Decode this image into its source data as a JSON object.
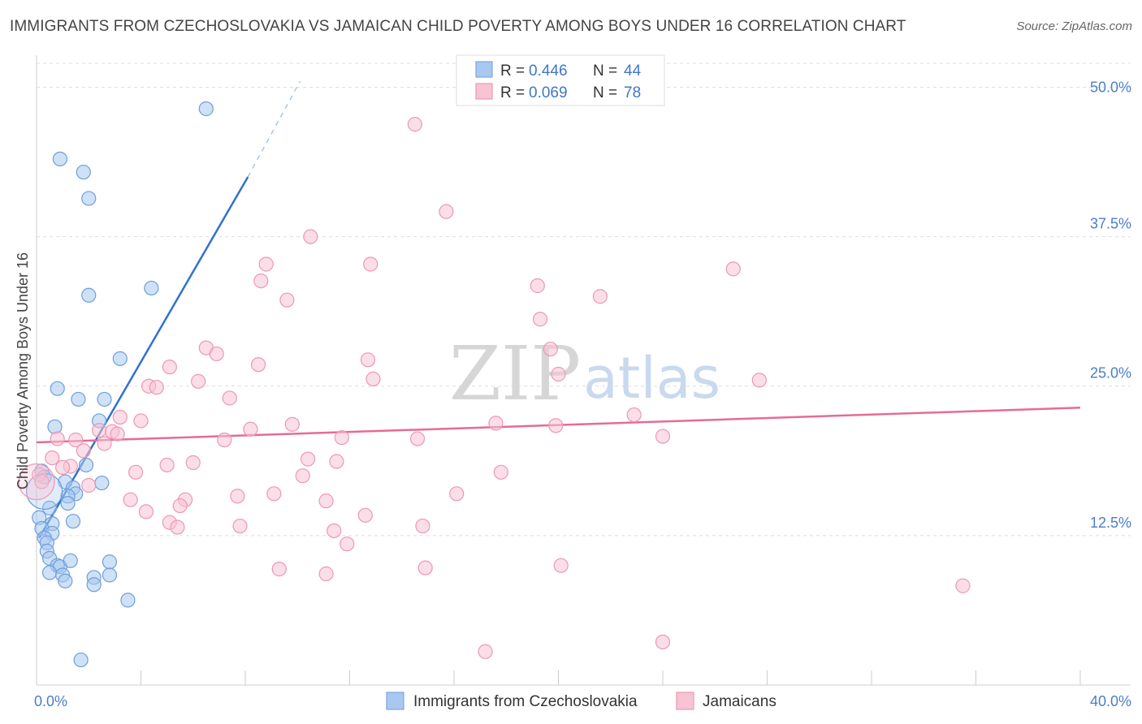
{
  "title": "IMMIGRANTS FROM CZECHOSLOVAKIA VS JAMAICAN CHILD POVERTY AMONG BOYS UNDER 16 CORRELATION CHART",
  "source": "Source: ZipAtlas.com",
  "watermark": {
    "zip": "ZIP",
    "atlas": "atlas"
  },
  "legend": {
    "r_label": "R =",
    "n_label": "N =",
    "entries": [
      {
        "r": "0.446",
        "n": "44",
        "color": "#a8c8f0",
        "edge": "#7aa8e0"
      },
      {
        "r": "0.069",
        "n": "78",
        "color": "#f8c3d3",
        "edge": "#ec98b3"
      }
    ]
  },
  "chart_data": {
    "type": "scatter",
    "title": "IMMIGRANTS FROM CZECHOSLOVAKIA VS JAMAICAN CHILD POVERTY AMONG BOYS UNDER 16 CORRELATION CHART",
    "xlabel": "",
    "ylabel": "Child Poverty Among Boys Under 16",
    "xlim": [
      0,
      40
    ],
    "ylim": [
      0,
      52
    ],
    "x_tick_labels": [
      {
        "value": 0,
        "label": "0.0%"
      },
      {
        "value": 40,
        "label": "40.0%"
      }
    ],
    "y_tick_labels": [
      {
        "value": 12.5,
        "label": "12.5%"
      },
      {
        "value": 25,
        "label": "25.0%"
      },
      {
        "value": 37.5,
        "label": "37.5%"
      },
      {
        "value": 50,
        "label": "50.0%"
      }
    ],
    "series": [
      {
        "name": "Immigrants from Czechoslovakia",
        "color": "#a8c8f0",
        "edge": "#6f9fd9",
        "trend_color": "#2f72cf",
        "trend": {
          "x0": 0.1,
          "y0": 12.3,
          "x1": 8.1,
          "y1": 42.5,
          "dash_to_x": 10.1,
          "dash_to_y": 50.5
        },
        "points": [
          [
            6.5,
            48.2
          ],
          [
            0.9,
            44.0
          ],
          [
            1.8,
            42.9
          ],
          [
            2.0,
            40.7
          ],
          [
            4.4,
            33.2
          ],
          [
            2.0,
            32.6
          ],
          [
            3.2,
            27.3
          ],
          [
            0.8,
            24.8
          ],
          [
            1.6,
            23.9
          ],
          [
            2.6,
            23.9
          ],
          [
            2.4,
            22.1
          ],
          [
            0.7,
            21.6
          ],
          [
            0.2,
            17.9
          ],
          [
            0.3,
            17.4
          ],
          [
            1.1,
            17.0
          ],
          [
            1.9,
            18.4
          ],
          [
            1.4,
            16.5
          ],
          [
            2.5,
            16.9
          ],
          [
            1.5,
            16.0
          ],
          [
            1.2,
            15.8
          ],
          [
            1.2,
            15.2
          ],
          [
            0.5,
            14.8
          ],
          [
            0.1,
            14.0
          ],
          [
            0.6,
            13.5
          ],
          [
            1.4,
            13.7
          ],
          [
            0.2,
            13.1
          ],
          [
            0.6,
            12.7
          ],
          [
            0.3,
            12.3
          ],
          [
            0.4,
            11.9
          ],
          [
            0.4,
            11.2
          ],
          [
            0.5,
            10.6
          ],
          [
            0.8,
            10.0
          ],
          [
            0.9,
            9.9
          ],
          [
            1.3,
            10.4
          ],
          [
            2.8,
            10.3
          ],
          [
            0.5,
            9.4
          ],
          [
            1.0,
            9.2
          ],
          [
            1.1,
            8.7
          ],
          [
            2.2,
            9.0
          ],
          [
            2.8,
            9.2
          ],
          [
            2.2,
            8.4
          ],
          [
            3.5,
            7.1
          ],
          [
            1.7,
            2.1
          ],
          [
            0.3,
            16.2
          ]
        ]
      },
      {
        "name": "Jamaicans",
        "color": "#f8c3d3",
        "edge": "#ec98b3",
        "trend_color": "#e66b96",
        "trend": {
          "x0": 0,
          "y0": 20.3,
          "x1": 40,
          "y1": 23.2
        },
        "points": [
          [
            14.5,
            46.9
          ],
          [
            15.7,
            39.6
          ],
          [
            10.5,
            37.5
          ],
          [
            8.8,
            35.2
          ],
          [
            12.8,
            35.2
          ],
          [
            8.6,
            33.8
          ],
          [
            19.2,
            33.4
          ],
          [
            26.7,
            34.8
          ],
          [
            9.6,
            32.2
          ],
          [
            21.6,
            32.5
          ],
          [
            19.3,
            30.6
          ],
          [
            6.5,
            28.2
          ],
          [
            6.9,
            27.7
          ],
          [
            12.7,
            27.2
          ],
          [
            19.7,
            28.1
          ],
          [
            5.1,
            26.6
          ],
          [
            8.5,
            26.8
          ],
          [
            4.3,
            25.0
          ],
          [
            4.6,
            24.9
          ],
          [
            6.2,
            25.4
          ],
          [
            12.9,
            25.6
          ],
          [
            20.0,
            26.0
          ],
          [
            27.7,
            25.5
          ],
          [
            7.4,
            24.0
          ],
          [
            3.2,
            22.4
          ],
          [
            4.0,
            22.1
          ],
          [
            9.8,
            21.8
          ],
          [
            17.6,
            21.9
          ],
          [
            19.9,
            21.7
          ],
          [
            22.9,
            22.6
          ],
          [
            2.4,
            21.3
          ],
          [
            2.9,
            21.2
          ],
          [
            3.1,
            21.0
          ],
          [
            8.2,
            21.4
          ],
          [
            0.8,
            20.6
          ],
          [
            1.5,
            20.5
          ],
          [
            7.2,
            20.5
          ],
          [
            11.7,
            20.7
          ],
          [
            14.6,
            20.6
          ],
          [
            24.0,
            20.8
          ],
          [
            2.6,
            20.2
          ],
          [
            1.8,
            19.6
          ],
          [
            0.6,
            19.0
          ],
          [
            10.4,
            18.9
          ],
          [
            11.5,
            18.7
          ],
          [
            6.0,
            18.6
          ],
          [
            5.0,
            18.4
          ],
          [
            1.3,
            18.3
          ],
          [
            1.0,
            18.2
          ],
          [
            3.8,
            17.8
          ],
          [
            17.8,
            17.8
          ],
          [
            0.1,
            17.6
          ],
          [
            0.2,
            17.0
          ],
          [
            10.2,
            17.5
          ],
          [
            2.0,
            16.7
          ],
          [
            9.1,
            16.0
          ],
          [
            7.7,
            15.8
          ],
          [
            16.1,
            16.0
          ],
          [
            3.6,
            15.5
          ],
          [
            5.7,
            15.5
          ],
          [
            11.1,
            15.4
          ],
          [
            5.5,
            15.0
          ],
          [
            4.2,
            14.5
          ],
          [
            12.6,
            14.2
          ],
          [
            5.1,
            13.6
          ],
          [
            5.4,
            13.2
          ],
          [
            7.8,
            13.3
          ],
          [
            14.8,
            13.3
          ],
          [
            11.4,
            12.9
          ],
          [
            11.9,
            11.8
          ],
          [
            20.1,
            10.0
          ],
          [
            9.3,
            9.7
          ],
          [
            11.1,
            9.3
          ],
          [
            14.9,
            9.8
          ],
          [
            35.5,
            8.3
          ],
          [
            24.0,
            3.6
          ],
          [
            17.2,
            2.8
          ],
          [
            0,
            17.0
          ]
        ]
      }
    ]
  },
  "bottom_legend": [
    {
      "label": "Immigrants from Czechoslovakia",
      "color": "#a8c8f0",
      "edge": "#7aa8e0"
    },
    {
      "label": "Jamaicans",
      "color": "#f8c3d3",
      "edge": "#ec98b3"
    }
  ]
}
